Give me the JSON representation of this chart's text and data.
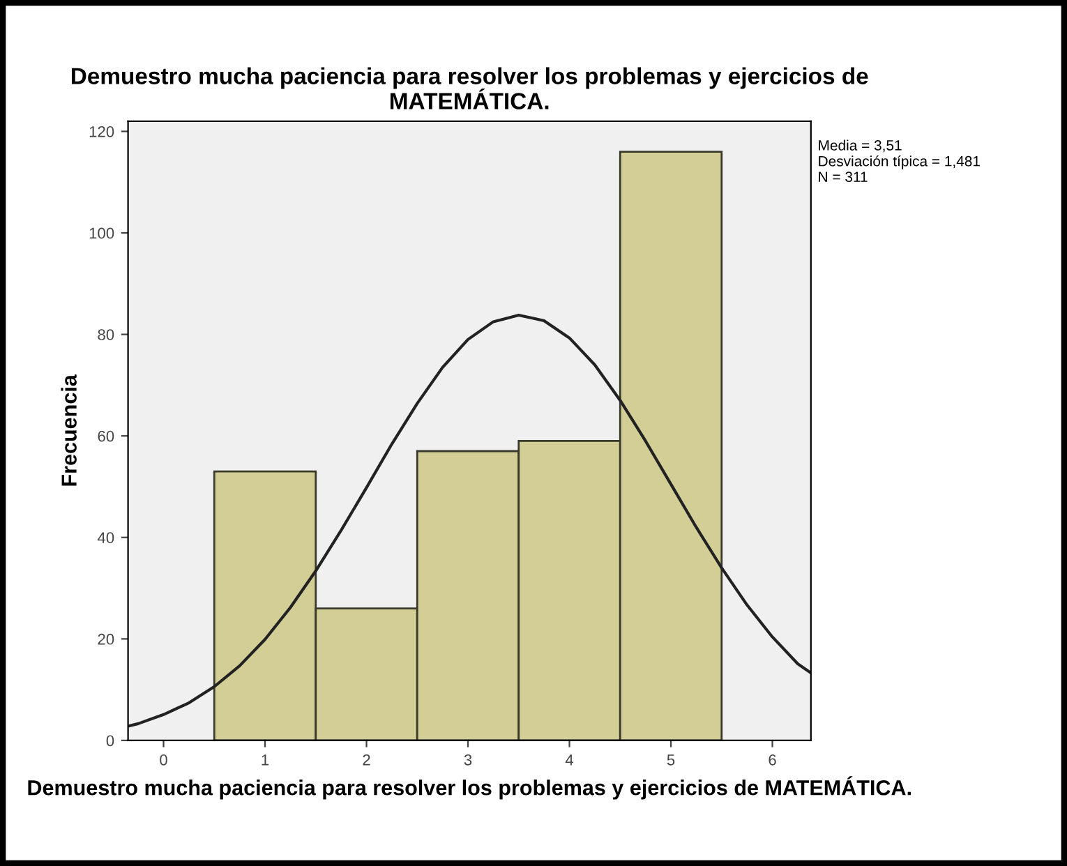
{
  "chart_data": {
    "type": "histogram",
    "title": "Demuestro mucha paciencia para resolver los problemas y ejercicios de MATEMÁTICA.",
    "xlabel": "Demuestro mucha paciencia para resolver los problemas y ejercicios de MATEMÁTICA.",
    "ylabel": "Frecuencia",
    "bins": [
      0.5,
      1.5,
      2.5,
      3.5,
      4.5,
      5.5
    ],
    "values": [
      53,
      26,
      57,
      59,
      116
    ],
    "color": "#d3ce96",
    "series": [
      {
        "type": "line",
        "color": "#222222",
        "x": [
          -0.35,
          -0.25,
          0,
          0.25,
          0.5,
          0.75,
          1,
          1.25,
          1.5,
          1.75,
          2,
          2.25,
          2.5,
          2.75,
          3,
          3.25,
          3.5,
          3.75,
          4,
          4.25,
          4.5,
          4.75,
          5,
          5.25,
          5.5,
          5.75,
          6,
          6.25,
          6.38
        ],
        "values": [
          2.8,
          3.3,
          5.1,
          7.4,
          10.6,
          14.7,
          19.9,
          26.2,
          33.4,
          41.4,
          49.8,
          58.4,
          66.4,
          73.5,
          79.0,
          82.5,
          83.8,
          82.7,
          79.3,
          74.0,
          67.0,
          59.0,
          50.5,
          42.0,
          34.0,
          26.7,
          20.4,
          15.1,
          13.3
        ]
      }
    ],
    "annotations": [
      "Media = 3,51\nDesviación típica = 1,481\nN = 311"
    ],
    "xlim": [
      -0.35,
      6.38
    ],
    "ylim": [
      0,
      122
    ],
    "xticks": [
      0,
      1,
      2,
      3,
      4,
      5,
      6
    ],
    "yticks": [
      0,
      20,
      40,
      60,
      80,
      100,
      120
    ],
    "grid": false,
    "legend": false
  }
}
